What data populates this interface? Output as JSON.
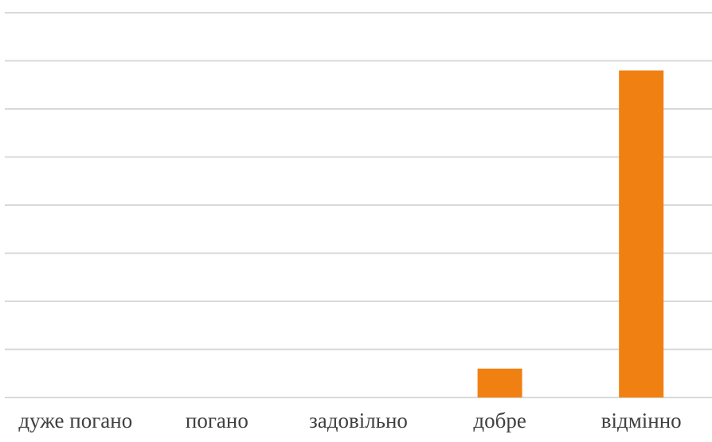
{
  "chart_data": {
    "type": "bar",
    "categories": [
      "дуже погано",
      "погано",
      "задовільно",
      "добре",
      "відмінно"
    ],
    "values": [
      0,
      0,
      0,
      0.6,
      6.8
    ],
    "ylim": [
      0,
      8
    ],
    "y_step": 1,
    "grid": true,
    "legend": "none",
    "bar_color": "#f08012",
    "grid_color": "#d9d9d9",
    "label_color": "#404040"
  }
}
